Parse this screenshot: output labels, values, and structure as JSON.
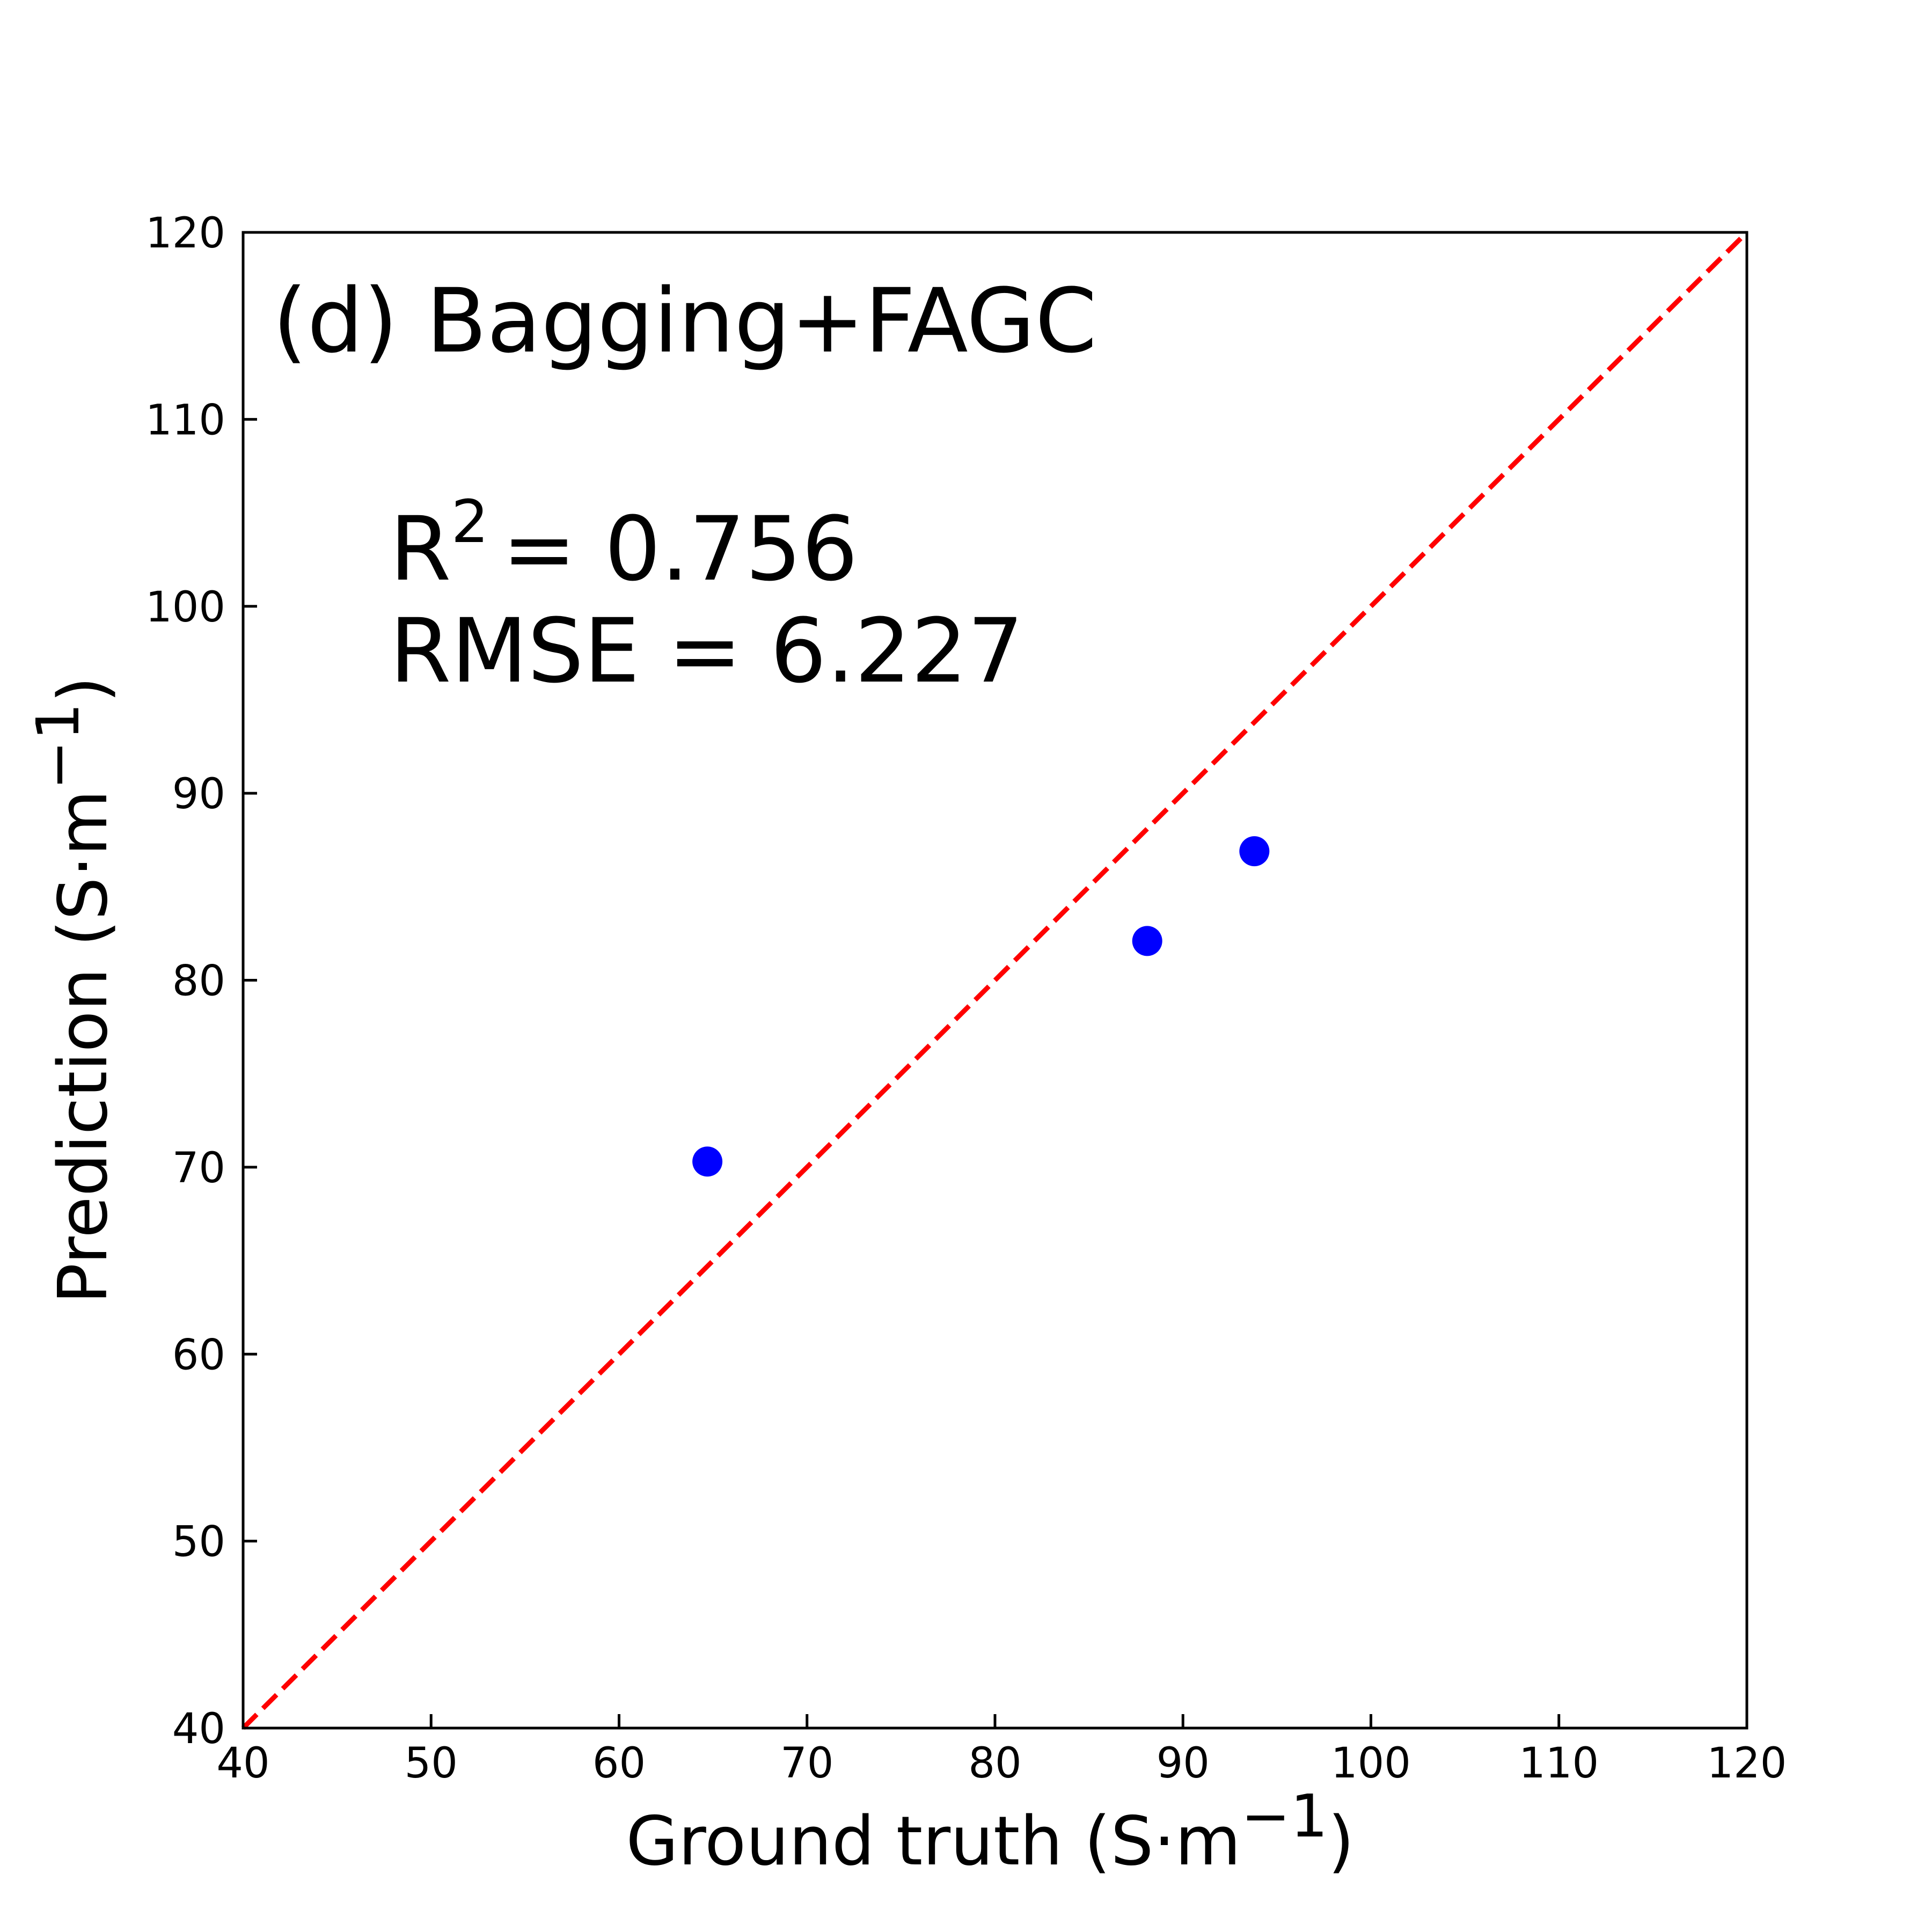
{
  "chart_data": {
    "type": "scatter",
    "title": "(d) Bagging+FAGC",
    "xlabel": {
      "main": "Ground truth (S·m",
      "superscript": "−1",
      "suffix": ")"
    },
    "ylabel": {
      "main": "Prediction (S·m",
      "superscript": "−1",
      "suffix": ")"
    },
    "xlim": [
      40,
      120
    ],
    "ylim": [
      40,
      120
    ],
    "xticks": [
      40,
      50,
      60,
      70,
      80,
      90,
      100,
      110,
      120
    ],
    "yticks": [
      40,
      50,
      60,
      70,
      80,
      90,
      100,
      110,
      120
    ],
    "tick_labels_x": [
      "40",
      "50",
      "60",
      "70",
      "80",
      "90",
      "100",
      "110",
      "120"
    ],
    "tick_labels_y": [
      "40",
      "50",
      "60",
      "70",
      "80",
      "90",
      "100",
      "110",
      "120"
    ],
    "grid": false,
    "series": [
      {
        "marker_color": "#0000ff",
        "points": [
          {
            "x": 64.7,
            "y": 70.3
          },
          {
            "x": 88.1,
            "y": 82.1
          },
          {
            "x": 93.8,
            "y": 86.9
          }
        ]
      }
    ],
    "reference_line": {
      "from": [
        40,
        40
      ],
      "to": [
        120,
        120
      ],
      "color": "#ff0000",
      "style": "dashed"
    },
    "annotations": {
      "r2_label": "R",
      "r2_superscript": "2",
      "r2_value": "=  0.756",
      "rmse_text": "RMSE = 6.227"
    }
  }
}
